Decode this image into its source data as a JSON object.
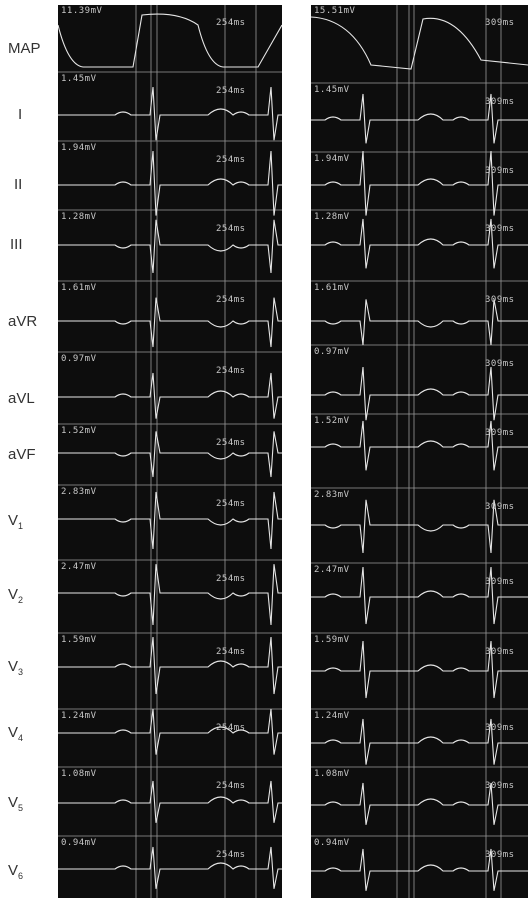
{
  "leads": [
    {
      "name": "MAP",
      "sub": "",
      "left": {
        "amp": "11.39mV",
        "ms": "254ms"
      },
      "right": {
        "amp": "15.51mV",
        "ms": "309ms"
      }
    },
    {
      "name": "I",
      "sub": "",
      "left": {
        "amp": "1.45mV",
        "ms": "254ms"
      },
      "right": {
        "amp": "1.45mV",
        "ms": "309ms"
      }
    },
    {
      "name": "II",
      "sub": "",
      "left": {
        "amp": "1.94mV",
        "ms": "254ms"
      },
      "right": {
        "amp": "1.94mV",
        "ms": "309ms"
      }
    },
    {
      "name": "III",
      "sub": "",
      "left": {
        "amp": "1.28mV",
        "ms": "254ms"
      },
      "right": {
        "amp": "1.28mV",
        "ms": "309ms"
      }
    },
    {
      "name": "aVR",
      "sub": "",
      "left": {
        "amp": "1.61mV",
        "ms": "254ms"
      },
      "right": {
        "amp": "1.61mV",
        "ms": "309ms"
      }
    },
    {
      "name": "aVL",
      "sub": "",
      "left": {
        "amp": "0.97mV",
        "ms": "254ms"
      },
      "right": {
        "amp": "0.97mV",
        "ms": "309ms"
      }
    },
    {
      "name": "aVF",
      "sub": "",
      "left": {
        "amp": "1.52mV",
        "ms": "254ms"
      },
      "right": {
        "amp": "1.52mV",
        "ms": "309ms"
      }
    },
    {
      "name": "V",
      "sub": "1",
      "left": {
        "amp": "2.83mV",
        "ms": "254ms"
      },
      "right": {
        "amp": "2.83mV",
        "ms": "309ms"
      }
    },
    {
      "name": "V",
      "sub": "2",
      "left": {
        "amp": "2.47mV",
        "ms": "254ms"
      },
      "right": {
        "amp": "2.47mV",
        "ms": "309ms"
      }
    },
    {
      "name": "V",
      "sub": "3",
      "left": {
        "amp": "1.59mV",
        "ms": "254ms"
      },
      "right": {
        "amp": "1.59mV",
        "ms": "309ms"
      }
    },
    {
      "name": "V",
      "sub": "4",
      "left": {
        "amp": "1.24mV",
        "ms": "254ms"
      },
      "right": {
        "amp": "1.24mV",
        "ms": "309ms"
      }
    },
    {
      "name": "V",
      "sub": "5",
      "left": {
        "amp": "1.08mV",
        "ms": "254ms"
      },
      "right": {
        "amp": "1.08mV",
        "ms": "309ms"
      }
    },
    {
      "name": "V",
      "sub": "6",
      "left": {
        "amp": "0.94mV",
        "ms": "254ms"
      },
      "right": {
        "amp": "0.94mV",
        "ms": "309ms"
      }
    }
  ],
  "colors": {
    "background": "#0d0d0d",
    "trace": "#e6e6e6",
    "grid": "#9a9a9a",
    "label": "#333333"
  }
}
